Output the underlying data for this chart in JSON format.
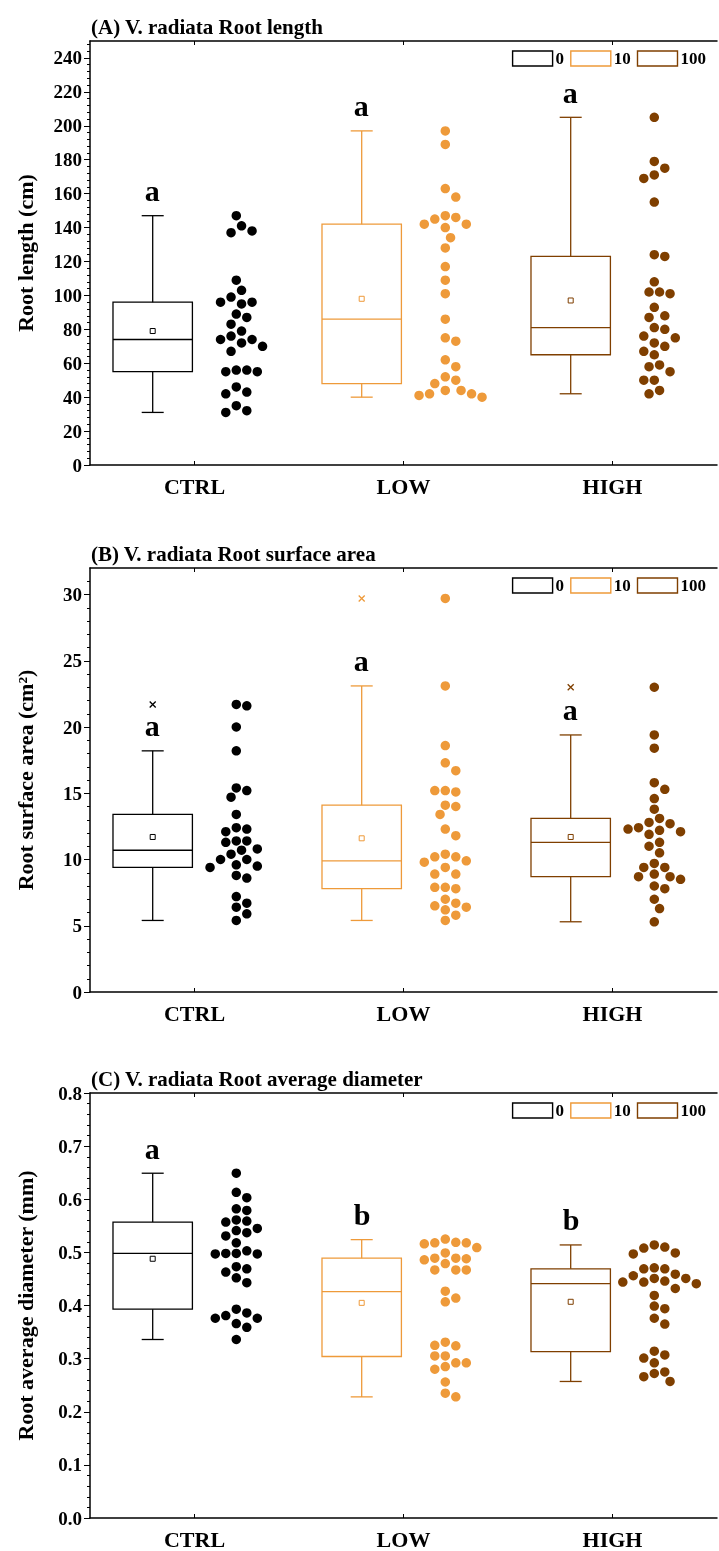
{
  "chart_data": [
    {
      "type": "box",
      "title": "(A) V. radiata Root length",
      "ylabel": "Root length (cm)",
      "categories": [
        "CTRL",
        "LOW",
        "HIGH"
      ],
      "ylim": [
        0,
        250
      ],
      "yticks": [
        0,
        20,
        40,
        60,
        80,
        100,
        120,
        140,
        160,
        180,
        200,
        220,
        240
      ],
      "legend": "top right",
      "series": [
        {
          "name": "0",
          "color": "#000000",
          "boxes": [
            {
              "low": 31,
              "q1": 55,
              "median": 74,
              "q3": 96,
              "high": 147,
              "mean": 79
            },
            null,
            null
          ]
        },
        {
          "name": "10",
          "color": "#ee9a3a",
          "boxes": [
            null,
            {
              "low": 40,
              "q1": 48,
              "median": 86,
              "q3": 142,
              "high": 197,
              "mean": 98
            },
            null
          ]
        },
        {
          "name": "100",
          "color": "#7f3f00",
          "boxes": [
            null,
            null,
            {
              "low": 42,
              "q1": 65,
              "median": 81,
              "q3": 123,
              "high": 205,
              "mean": 97
            }
          ]
        },
        {
          "type": "scatter",
          "color": "#000000",
          "x": [
            "CTRL",
            "CTRL",
            "CTRL",
            "CTRL",
            "CTRL",
            "CTRL",
            "CTRL",
            "CTRL",
            "CTRL",
            "CTRL",
            "CTRL",
            "CTRL",
            "CTRL",
            "CTRL",
            "CTRL",
            "CTRL",
            "CTRL",
            "CTRL",
            "CTRL",
            "CTRL",
            "CTRL",
            "CTRL",
            "CTRL",
            "CTRL",
            "CTRL",
            "CTRL",
            "CTRL",
            "CTRL",
            "CTRL",
            "CTRL"
          ],
          "values": [
            147,
            141,
            137,
            138,
            109,
            103,
            99,
            95,
            96,
            96,
            89,
            87,
            83,
            79,
            76,
            74,
            74,
            72,
            70,
            67,
            56,
            56,
            55,
            55,
            46,
            43,
            42,
            35,
            32,
            31
          ]
        },
        {
          "type": "scatter",
          "color": "#ee9a3a",
          "x": [
            "LOW",
            "LOW",
            "LOW",
            "LOW",
            "LOW",
            "LOW",
            "LOW",
            "LOW",
            "LOW",
            "LOW",
            "LOW",
            "LOW",
            "LOW",
            "LOW",
            "LOW",
            "LOW",
            "LOW",
            "LOW",
            "LOW",
            "LOW",
            "LOW",
            "LOW",
            "LOW",
            "LOW",
            "LOW",
            "LOW",
            "LOW",
            "LOW",
            "LOW"
          ],
          "values": [
            197,
            189,
            163,
            158,
            147,
            146,
            145,
            142,
            142,
            140,
            134,
            128,
            117,
            109,
            101,
            86,
            75,
            73,
            62,
            58,
            52,
            50,
            48,
            44,
            44,
            42,
            42,
            41,
            40
          ]
        },
        {
          "type": "scatter",
          "color": "#7f3f00",
          "x": [
            "HIGH",
            "HIGH",
            "HIGH",
            "HIGH",
            "HIGH",
            "HIGH",
            "HIGH",
            "HIGH",
            "HIGH",
            "HIGH",
            "HIGH",
            "HIGH",
            "HIGH",
            "HIGH",
            "HIGH",
            "HIGH",
            "HIGH",
            "HIGH",
            "HIGH",
            "HIGH",
            "HIGH",
            "HIGH",
            "HIGH",
            "HIGH",
            "HIGH",
            "HIGH",
            "HIGH",
            "HIGH",
            "HIGH",
            "HIGH"
          ],
          "values": [
            205,
            179,
            175,
            171,
            169,
            155,
            124,
            123,
            108,
            102,
            102,
            101,
            93,
            88,
            87,
            81,
            80,
            76,
            75,
            72,
            70,
            67,
            65,
            59,
            58,
            55,
            50,
            50,
            44,
            42
          ]
        }
      ],
      "annotations": [
        "a",
        "a",
        "a"
      ]
    },
    {
      "type": "box",
      "title": "(B) V. radiata Root surface area",
      "ylabel": "Root surface area (cm²)",
      "categories": [
        "CTRL",
        "LOW",
        "HIGH"
      ],
      "ylim": [
        0,
        32
      ],
      "yticks": [
        0,
        5,
        10,
        15,
        20,
        25,
        30
      ],
      "legend": "top right",
      "series": [
        {
          "name": "0",
          "color": "#000000",
          "boxes": [
            {
              "low": 5.4,
              "q1": 9.4,
              "median": 10.7,
              "q3": 13.4,
              "high": 18.2,
              "mean": 11.7,
              "outliers": [
                21.7
              ]
            },
            null,
            null
          ]
        },
        {
          "name": "10",
          "color": "#ee9a3a",
          "boxes": [
            null,
            {
              "low": 5.4,
              "q1": 7.8,
              "median": 9.9,
              "q3": 14.1,
              "high": 23.1,
              "mean": 11.6,
              "outliers": [
                29.7
              ]
            },
            null
          ]
        },
        {
          "name": "100",
          "color": "#7f3f00",
          "boxes": [
            null,
            null,
            {
              "low": 5.3,
              "q1": 8.7,
              "median": 11.3,
              "q3": 13.1,
              "high": 19.4,
              "mean": 11.7,
              "outliers": [
                23.0
              ]
            }
          ]
        },
        {
          "type": "scatter",
          "color": "#000000",
          "x": [
            "CTRL",
            "CTRL",
            "CTRL",
            "CTRL",
            "CTRL",
            "CTRL",
            "CTRL",
            "CTRL",
            "CTRL",
            "CTRL",
            "CTRL",
            "CTRL",
            "CTRL",
            "CTRL",
            "CTRL",
            "CTRL",
            "CTRL",
            "CTRL",
            "CTRL",
            "CTRL",
            "CTRL",
            "CTRL",
            "CTRL",
            "CTRL",
            "CTRL",
            "CTRL",
            "CTRL",
            "CTRL",
            "CTRL"
          ],
          "values": [
            21.7,
            21.6,
            20.0,
            18.2,
            15.4,
            15.2,
            14.7,
            13.4,
            12.4,
            12.3,
            12.1,
            11.4,
            11.4,
            11.3,
            10.7,
            10.8,
            10.4,
            10.0,
            10.0,
            9.6,
            9.5,
            9.4,
            8.8,
            8.6,
            7.2,
            6.7,
            6.4,
            5.9,
            5.4
          ]
        },
        {
          "type": "scatter",
          "color": "#ee9a3a",
          "x": [
            "LOW",
            "LOW",
            "LOW",
            "LOW",
            "LOW",
            "LOW",
            "LOW",
            "LOW",
            "LOW",
            "LOW",
            "LOW",
            "LOW",
            "LOW",
            "LOW",
            "LOW",
            "LOW",
            "LOW",
            "LOW",
            "LOW",
            "LOW",
            "LOW",
            "LOW",
            "LOW",
            "LOW",
            "LOW",
            "LOW",
            "LOW",
            "LOW",
            "LOW",
            "LOW",
            "LOW"
          ],
          "values": [
            29.7,
            23.1,
            18.6,
            17.3,
            16.7,
            15.2,
            15.2,
            15.1,
            14.1,
            14.0,
            13.4,
            12.3,
            11.8,
            10.4,
            10.2,
            10.2,
            9.9,
            9.8,
            9.4,
            8.9,
            8.9,
            7.9,
            7.9,
            7.8,
            7.0,
            6.7,
            6.5,
            6.4,
            6.2,
            5.8,
            5.4
          ]
        },
        {
          "type": "scatter",
          "color": "#7f3f00",
          "x": [
            "HIGH",
            "HIGH",
            "HIGH",
            "HIGH",
            "HIGH",
            "HIGH",
            "HIGH",
            "HIGH",
            "HIGH",
            "HIGH",
            "HIGH",
            "HIGH",
            "HIGH",
            "HIGH",
            "HIGH",
            "HIGH",
            "HIGH",
            "HIGH",
            "HIGH",
            "HIGH",
            "HIGH",
            "HIGH",
            "HIGH",
            "HIGH",
            "HIGH",
            "HIGH",
            "HIGH",
            "HIGH",
            "HIGH",
            "HIGH"
          ],
          "values": [
            23.0,
            19.4,
            18.4,
            15.8,
            15.3,
            14.6,
            13.8,
            13.1,
            12.8,
            12.7,
            12.4,
            12.2,
            12.1,
            11.9,
            11.3,
            11.0,
            10.5,
            9.7,
            9.4,
            9.4,
            8.9,
            8.7,
            8.7,
            8.5,
            8.0,
            7.8,
            7.0,
            6.3,
            5.3,
            12.3
          ]
        }
      ],
      "annotations": [
        "a",
        "a",
        "a"
      ]
    },
    {
      "type": "box",
      "title": "(C) V. radiata Root average diameter",
      "ylabel": "Root average diameter (mm)",
      "categories": [
        "CTRL",
        "LOW",
        "HIGH"
      ],
      "ylim": [
        0,
        0.8
      ],
      "yticks": [
        {
          "value": 0,
          "label": "0.0"
        },
        {
          "value": 0.1,
          "label": "0.1"
        },
        {
          "value": 0.2,
          "label": "0.2"
        },
        {
          "value": 0.3,
          "label": "0.3"
        },
        {
          "value": 0.4,
          "label": "0.4"
        },
        {
          "value": 0.5,
          "label": "0.5"
        },
        {
          "value": 0.6,
          "label": "0.6"
        },
        {
          "value": 0.7,
          "label": "0.7"
        },
        {
          "value": 0.8,
          "label": "0.8"
        }
      ],
      "legend": "top right",
      "series": [
        {
          "name": "0",
          "color": "#000000",
          "boxes": [
            {
              "low": 0.336,
              "q1": 0.393,
              "median": 0.498,
              "q3": 0.557,
              "high": 0.649,
              "mean": 0.488
            },
            null,
            null
          ]
        },
        {
          "name": "10",
          "color": "#ee9a3a",
          "boxes": [
            null,
            {
              "low": 0.228,
              "q1": 0.304,
              "median": 0.426,
              "q3": 0.489,
              "high": 0.524,
              "mean": 0.405
            },
            null
          ]
        },
        {
          "name": "100",
          "color": "#7f3f00",
          "boxes": [
            null,
            null,
            {
              "low": 0.257,
              "q1": 0.313,
              "median": 0.441,
              "q3": 0.469,
              "high": 0.514,
              "mean": 0.407
            }
          ]
        },
        {
          "type": "scatter",
          "color": "#000000",
          "x": [
            "CTRL",
            "CTRL",
            "CTRL",
            "CTRL",
            "CTRL",
            "CTRL",
            "CTRL",
            "CTRL",
            "CTRL",
            "CTRL",
            "CTRL",
            "CTRL",
            "CTRL",
            "CTRL",
            "CTRL",
            "CTRL",
            "CTRL",
            "CTRL",
            "CTRL",
            "CTRL",
            "CTRL",
            "CTRL",
            "CTRL",
            "CTRL",
            "CTRL",
            "CTRL",
            "CTRL",
            "CTRL",
            "CTRL",
            "CTRL",
            "CTRL"
          ],
          "values": [
            0.649,
            0.613,
            0.603,
            0.582,
            0.579,
            0.561,
            0.559,
            0.557,
            0.545,
            0.541,
            0.537,
            0.531,
            0.518,
            0.503,
            0.498,
            0.498,
            0.497,
            0.473,
            0.469,
            0.463,
            0.452,
            0.443,
            0.393,
            0.386,
            0.381,
            0.376,
            0.376,
            0.366,
            0.359,
            0.336,
            0.497
          ]
        },
        {
          "type": "scatter",
          "color": "#ee9a3a",
          "x": [
            "LOW",
            "LOW",
            "LOW",
            "LOW",
            "LOW",
            "LOW",
            "LOW",
            "LOW",
            "LOW",
            "LOW",
            "LOW",
            "LOW",
            "LOW",
            "LOW",
            "LOW",
            "LOW",
            "LOW",
            "LOW",
            "LOW",
            "LOW",
            "LOW",
            "LOW",
            "LOW",
            "LOW",
            "LOW",
            "LOW",
            "LOW",
            "LOW",
            "LOW",
            "LOW"
          ],
          "values": [
            0.525,
            0.519,
            0.518,
            0.518,
            0.516,
            0.509,
            0.499,
            0.489,
            0.489,
            0.488,
            0.486,
            0.479,
            0.467,
            0.467,
            0.467,
            0.427,
            0.414,
            0.407,
            0.331,
            0.324,
            0.325,
            0.305,
            0.305,
            0.292,
            0.292,
            0.285,
            0.28,
            0.256,
            0.235,
            0.228
          ]
        },
        {
          "type": "scatter",
          "color": "#7f3f00",
          "x": [
            "HIGH",
            "HIGH",
            "HIGH",
            "HIGH",
            "HIGH",
            "HIGH",
            "HIGH",
            "HIGH",
            "HIGH",
            "HIGH",
            "HIGH",
            "HIGH",
            "HIGH",
            "HIGH",
            "HIGH",
            "HIGH",
            "HIGH",
            "HIGH",
            "HIGH",
            "HIGH",
            "HIGH",
            "HIGH",
            "HIGH",
            "HIGH",
            "HIGH",
            "HIGH",
            "HIGH",
            "HIGH",
            "HIGH",
            "HIGH"
          ],
          "values": [
            0.514,
            0.51,
            0.508,
            0.499,
            0.497,
            0.471,
            0.469,
            0.469,
            0.459,
            0.456,
            0.451,
            0.451,
            0.446,
            0.444,
            0.444,
            0.441,
            0.432,
            0.419,
            0.399,
            0.394,
            0.376,
            0.365,
            0.314,
            0.307,
            0.301,
            0.292,
            0.275,
            0.272,
            0.266,
            0.257
          ]
        }
      ],
      "annotations": [
        "a",
        "b",
        "b"
      ]
    }
  ]
}
